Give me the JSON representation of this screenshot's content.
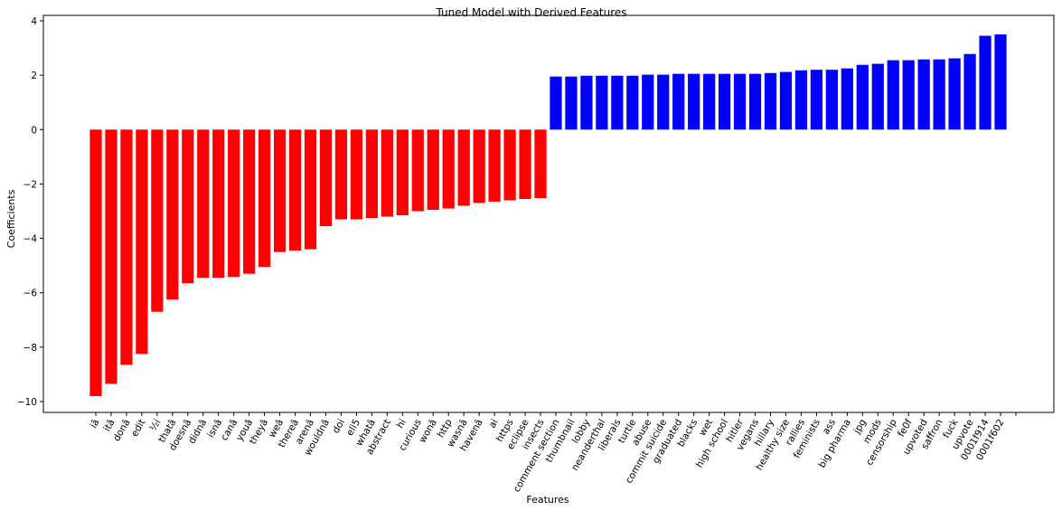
{
  "chart_data": {
    "type": "bar",
    "title": "Tuned Model with Derived Features",
    "xlabel": "Features",
    "ylabel": "Coefficients",
    "ylim": [
      -10.4,
      4.2
    ],
    "yticks": [
      -10,
      -8,
      -6,
      -4,
      -2,
      0,
      2,
      4
    ],
    "grid": false,
    "legend": "none",
    "colors": {
      "negative": "#ff0000",
      "positive": "#0000ff"
    },
    "categories": [
      "iâ",
      "itâ",
      "donâ",
      "edit",
      "½i",
      "thatâ",
      "doesnâ",
      "didnâ",
      "isnâ",
      "canâ",
      "youâ",
      "theyâ",
      "weâ",
      "thereâ",
      "arenâ",
      "wouldnâ",
      "doi",
      "eli5",
      "whatâ",
      "abstract",
      "hi",
      "curious",
      "wonâ",
      "http",
      "wasnâ",
      "havenâ",
      "ai",
      "https",
      "eclipse",
      "insects",
      "comment section",
      "thumbnail",
      "lobby",
      "neanderthal",
      "liberals",
      "turtle",
      "abuse",
      "commit suicide",
      "graduated",
      "blacks",
      "wet",
      "high school",
      "hitler",
      "vegans",
      "hillary",
      "healthy size",
      "rallies",
      "feminists",
      "ass",
      "big pharma",
      "jpg",
      "mods",
      "censorship",
      "fe0f",
      "upvoted",
      "saffron",
      "fuck",
      "upvote",
      "0001f914",
      "0001f602"
    ],
    "values": [
      -9.8,
      -9.35,
      -8.65,
      -8.25,
      -6.7,
      -6.25,
      -5.65,
      -5.45,
      -5.45,
      -5.42,
      -5.3,
      -5.05,
      -4.5,
      -4.45,
      -4.4,
      -3.55,
      -3.3,
      -3.3,
      -3.25,
      -3.2,
      -3.15,
      -3.0,
      -2.95,
      -2.9,
      -2.8,
      -2.7,
      -2.65,
      -2.6,
      -2.55,
      -2.52,
      1.95,
      1.95,
      1.98,
      1.98,
      1.98,
      1.98,
      2.02,
      2.02,
      2.05,
      2.05,
      2.05,
      2.05,
      2.05,
      2.05,
      2.08,
      2.12,
      2.18,
      2.2,
      2.2,
      2.25,
      2.38,
      2.42,
      2.55,
      2.55,
      2.58,
      2.58,
      2.62,
      2.78,
      3.45,
      3.5
    ]
  }
}
